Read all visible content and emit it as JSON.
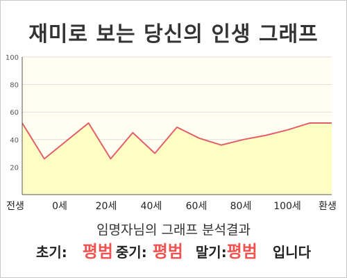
{
  "title": "재미로 보는 당신의 인생 그래프",
  "chart_data": {
    "type": "area",
    "x_categories": [
      "전생",
      "0세",
      "20세",
      "40세",
      "60세",
      "80세",
      "100세",
      "환생"
    ],
    "x": [
      0,
      1,
      2,
      3,
      4,
      5,
      6,
      7,
      8,
      9,
      10,
      11,
      12,
      13,
      14
    ],
    "values": [
      52,
      26,
      39,
      52,
      26,
      45,
      30,
      49,
      41,
      36,
      40,
      43,
      47,
      52,
      52
    ],
    "ylim": [
      0,
      100
    ],
    "yticks": [
      20,
      40,
      60,
      80,
      100
    ],
    "grid": true,
    "colors": {
      "line": "#e35d6a",
      "fill": "#ffffc4",
      "background": "#fffef0",
      "grid": "#dddddd"
    }
  },
  "summary": "임명자님의 그래프 분석결과",
  "results": {
    "early_label": "초기:",
    "early_value": "평범",
    "mid_label": "중기:",
    "mid_value": "평범",
    "late_label": "말기:",
    "late_value": "평범",
    "suffix": "입니다"
  }
}
